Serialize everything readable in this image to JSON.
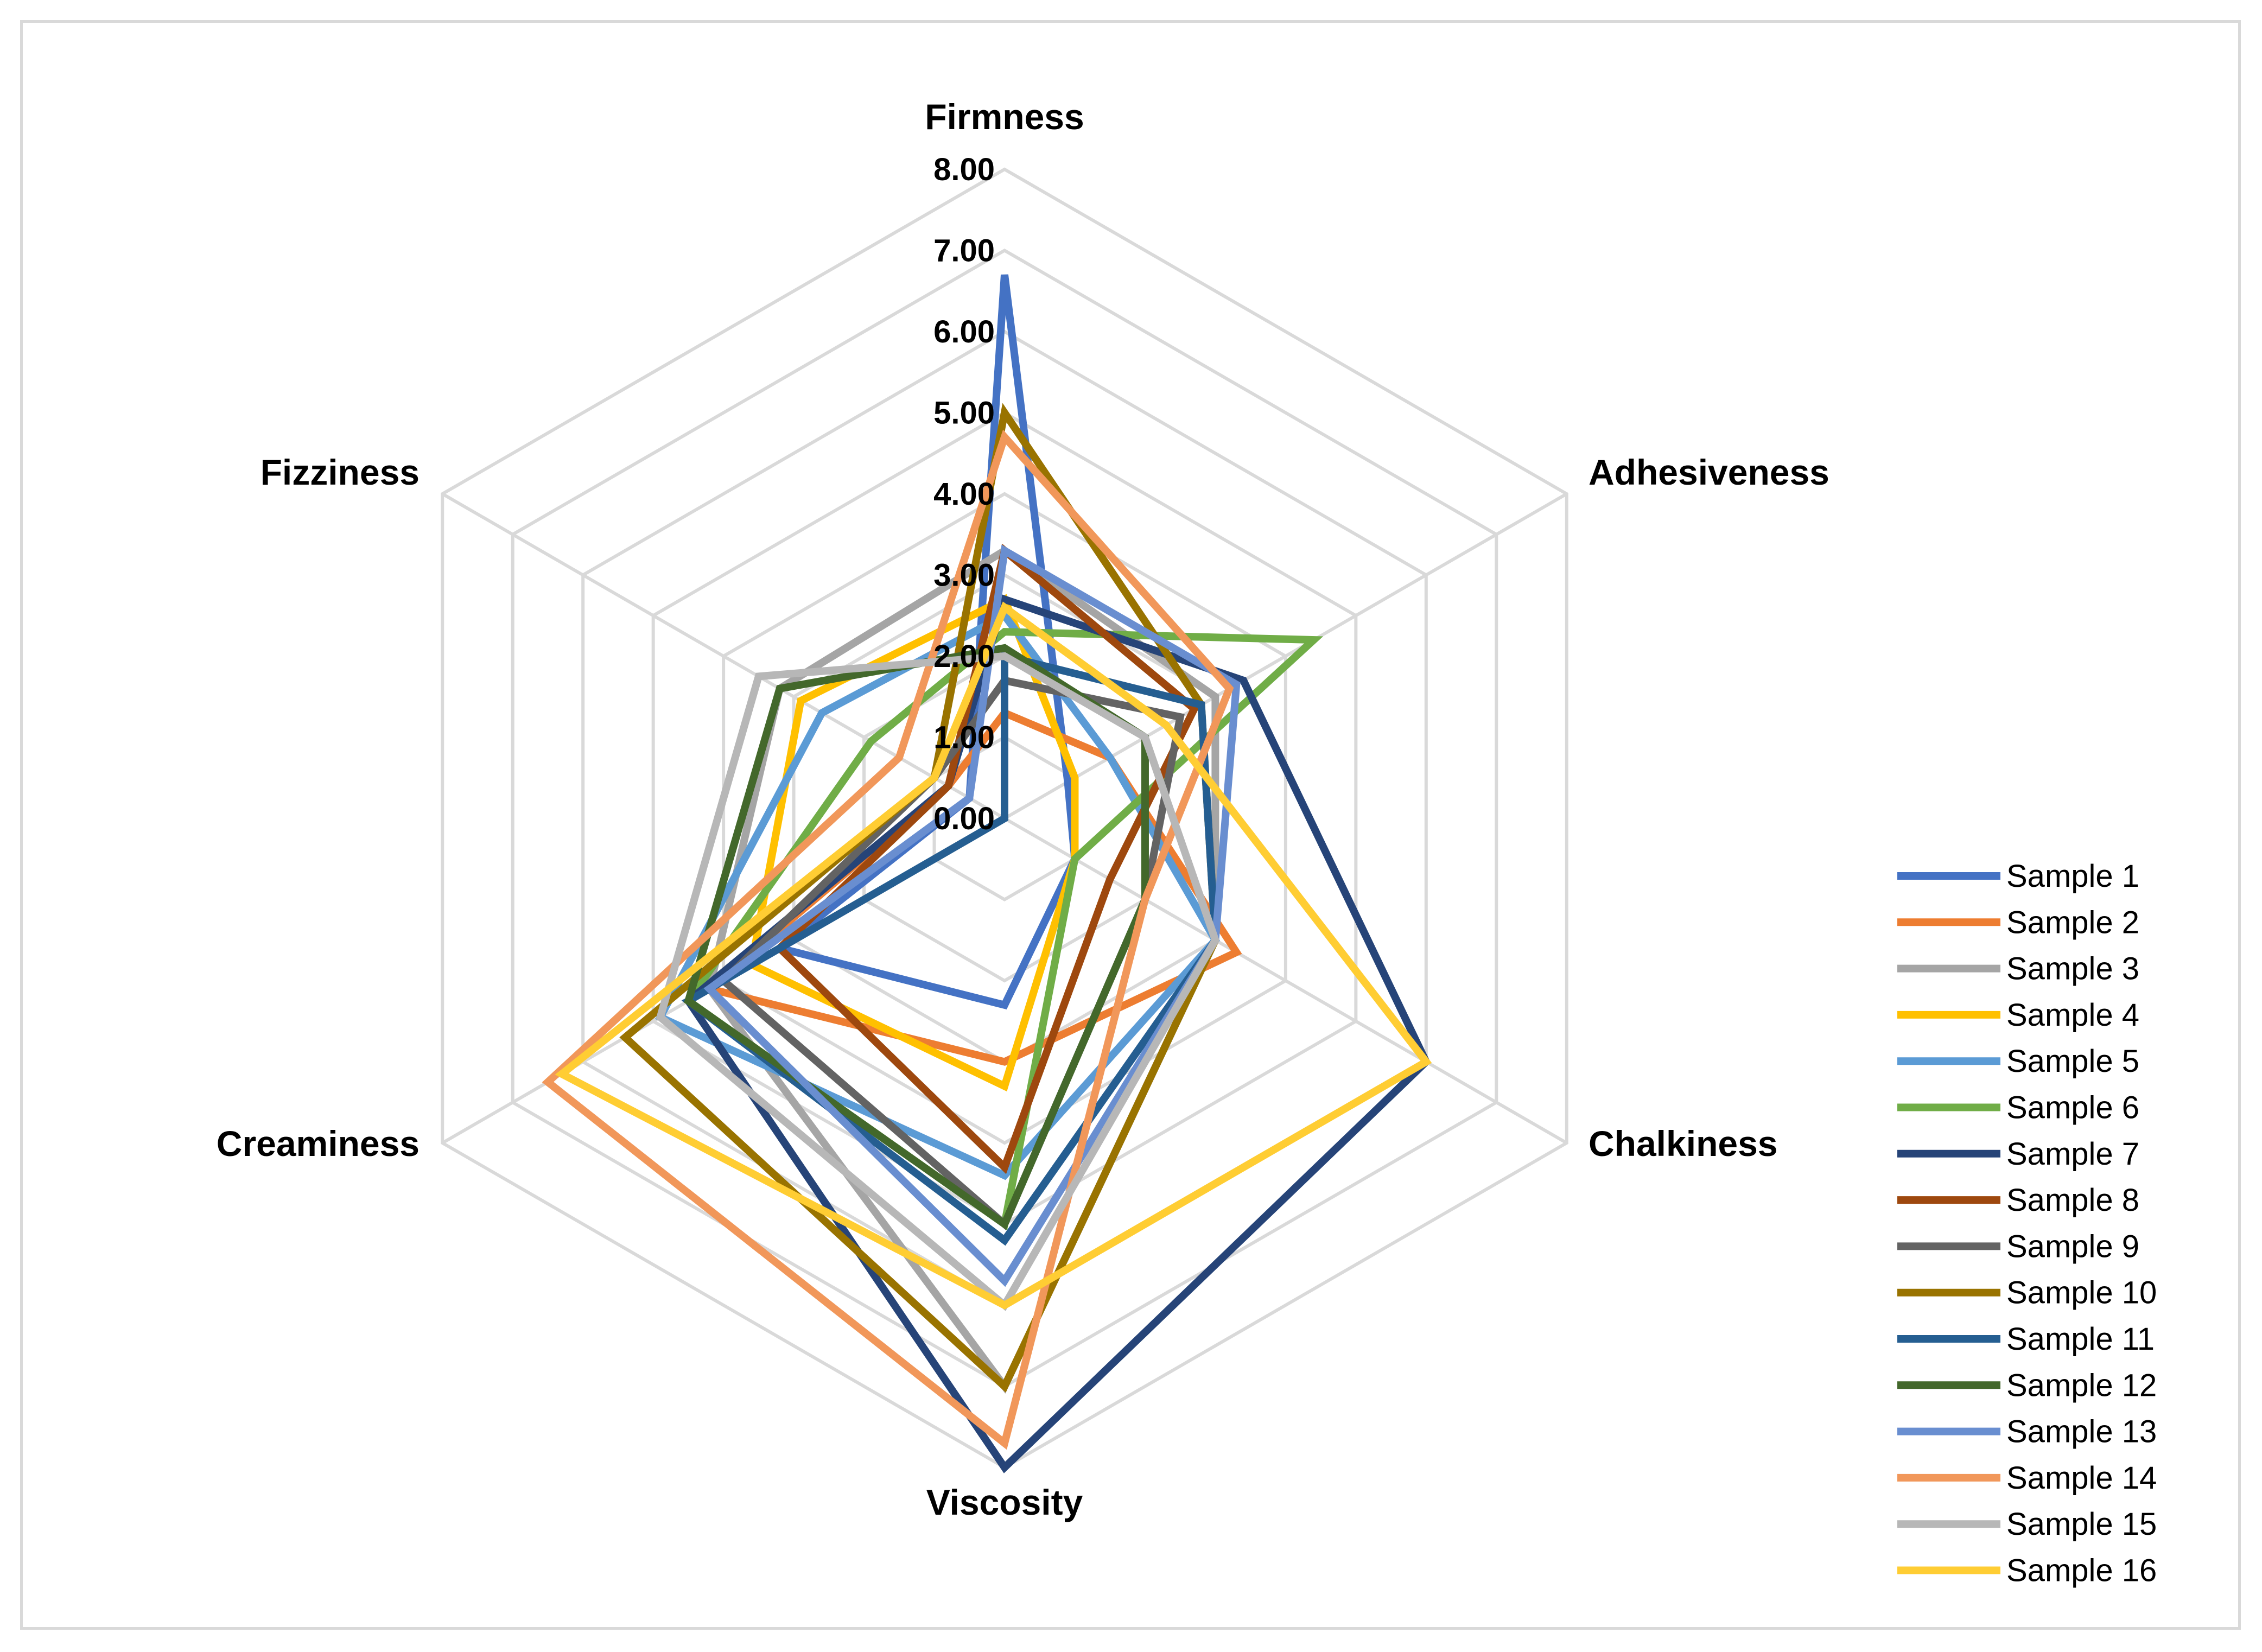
{
  "chart_data": {
    "type": "radar",
    "title": "",
    "axes": [
      "Firmness",
      "Adhesiveness",
      "Chalkiness",
      "Viscosity",
      "Creaminess",
      "Fizziness"
    ],
    "ticks": [
      "0.00",
      "1.00",
      "2.00",
      "3.00",
      "4.00",
      "5.00",
      "6.00",
      "7.00",
      "8.00"
    ],
    "range": [
      0,
      8
    ],
    "grid": true,
    "legend_position": "right",
    "series": [
      {
        "name": "Sample 1",
        "color": "#4472C4",
        "values": [
          6.7,
          0.9,
          1.0,
          2.3,
          3.2,
          0.5
        ]
      },
      {
        "name": "Sample 2",
        "color": "#ED7D31",
        "values": [
          1.3,
          1.5,
          3.3,
          3.0,
          4.2,
          0.8
        ]
      },
      {
        "name": "Sample 3",
        "color": "#A5A5A5",
        "values": [
          3.3,
          3.0,
          3.0,
          7.0,
          4.2,
          3.2
        ]
      },
      {
        "name": "Sample 4",
        "color": "#FFC000",
        "values": [
          2.7,
          1.0,
          1.0,
          3.3,
          3.6,
          2.9
        ]
      },
      {
        "name": "Sample 5",
        "color": "#5B9BD5",
        "values": [
          2.5,
          1.5,
          3.0,
          4.4,
          4.9,
          2.6
        ]
      },
      {
        "name": "Sample 6",
        "color": "#70AD47",
        "values": [
          2.3,
          4.4,
          1.0,
          5.0,
          4.5,
          1.9
        ]
      },
      {
        "name": "Sample 7",
        "color": "#264478",
        "values": [
          2.7,
          3.4,
          6.0,
          8.0,
          4.5,
          0.8
        ]
      },
      {
        "name": "Sample 8",
        "color": "#9E480E",
        "values": [
          3.3,
          2.7,
          1.5,
          4.3,
          3.2,
          0.8
        ]
      },
      {
        "name": "Sample 9",
        "color": "#636363",
        "values": [
          1.7,
          2.5,
          2.0,
          5.0,
          4.0,
          1.0
        ]
      },
      {
        "name": "Sample 10",
        "color": "#997300",
        "values": [
          5.0,
          2.8,
          3.0,
          7.0,
          5.4,
          1.0
        ]
      },
      {
        "name": "Sample 11",
        "color": "#255E91",
        "values": [
          2.0,
          2.8,
          3.0,
          5.2,
          4.5,
          0.0
        ]
      },
      {
        "name": "Sample 12",
        "color": "#43682B",
        "values": [
          2.1,
          2.0,
          2.0,
          5.0,
          4.5,
          3.2
        ]
      },
      {
        "name": "Sample 13",
        "color": "#698ED0",
        "values": [
          3.3,
          3.3,
          3.0,
          5.7,
          4.2,
          0.5
        ]
      },
      {
        "name": "Sample 14",
        "color": "#F1975A",
        "values": [
          4.7,
          3.2,
          2.0,
          7.7,
          6.5,
          1.5
        ]
      },
      {
        "name": "Sample 15",
        "color": "#B7B7B7",
        "values": [
          2.0,
          2.0,
          3.0,
          6.0,
          4.9,
          3.5
        ]
      },
      {
        "name": "Sample 16",
        "color": "#FFCD33",
        "values": [
          2.6,
          2.3,
          6.0,
          6.0,
          6.3,
          1.0
        ]
      }
    ]
  }
}
